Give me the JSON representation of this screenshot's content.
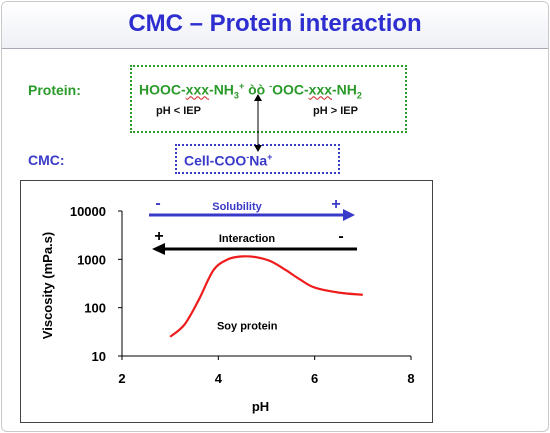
{
  "slide": {
    "title": "CMC – Protein interaction",
    "protein_label": "Protein:",
    "cmc_label": "CMC:",
    "formula": {
      "left": "HOOC-",
      "left_wavy": "xxx",
      "left_end": "-NH",
      "left_sub": "3",
      "left_sup": "+",
      "middle": " òò ",
      "right_sup": "-",
      "right": "OOC-",
      "right_wavy": "xxx",
      "right_end": "-NH",
      "right_sub": "2"
    },
    "condition_low": "pH < IEP",
    "condition_high": "pH > IEP",
    "cmc_formula": {
      "base": "Cell-COO",
      "sup1": "-",
      "mid": "Na",
      "sup2": "+"
    }
  },
  "chart_data": {
    "type": "line",
    "xlabel": "pH",
    "ylabel": "Viscosity (mPa.s)",
    "y_scale": "log",
    "xlim": [
      2,
      8
    ],
    "ylim": [
      10,
      10000
    ],
    "x_ticks": [
      "2",
      "4",
      "6",
      "8"
    ],
    "y_ticks": [
      "10",
      "100",
      "1000",
      "10000"
    ],
    "series": [
      {
        "name": "Soy protein",
        "color": "#ee1c1c",
        "points": [
          [
            3.0,
            25
          ],
          [
            3.3,
            45
          ],
          [
            3.6,
            150
          ],
          [
            3.9,
            600
          ],
          [
            4.2,
            1000
          ],
          [
            4.5,
            1150
          ],
          [
            4.8,
            1100
          ],
          [
            5.1,
            900
          ],
          [
            5.4,
            600
          ],
          [
            5.7,
            380
          ],
          [
            6.0,
            260
          ],
          [
            6.5,
            205
          ],
          [
            7.0,
            185
          ]
        ]
      }
    ],
    "annotations": [
      {
        "text": "Solubility",
        "minus": "-",
        "plus": "+",
        "color": "#3a3ac8",
        "direction": "right"
      },
      {
        "text": "Interaction",
        "plus": "+",
        "minus": "-",
        "color": "#000000",
        "direction": "left"
      }
    ],
    "grid": false
  }
}
